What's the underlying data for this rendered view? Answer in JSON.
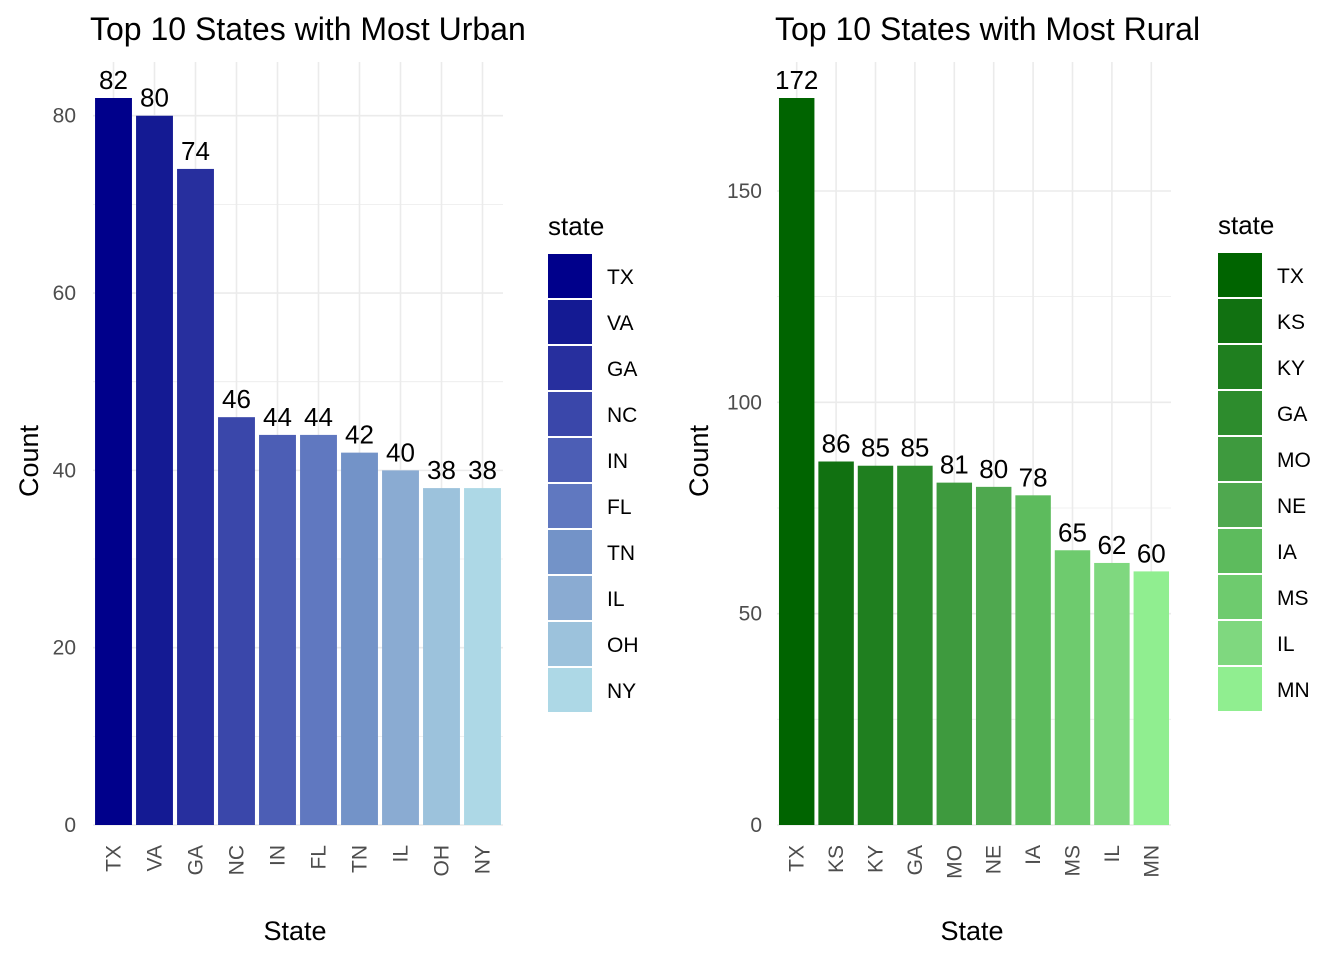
{
  "chart_data": [
    {
      "type": "bar",
      "title": "Top 10 States with Most Urban",
      "xlabel": "State",
      "ylabel": "Count",
      "categories": [
        "TX",
        "VA",
        "GA",
        "NC",
        "IN",
        "FL",
        "TN",
        "IL",
        "OH",
        "NY"
      ],
      "values": [
        82,
        80,
        74,
        46,
        44,
        44,
        42,
        40,
        38,
        38
      ],
      "colors": [
        "#00008b",
        "#141a93",
        "#272f9e",
        "#3a47aa",
        "#4c5eb5",
        "#6078c0",
        "#7393c8",
        "#8aabd2",
        "#9cc2dc",
        "#add8e6"
      ],
      "ylim": [
        0,
        82
      ],
      "yticks": [
        0,
        20,
        40,
        60,
        80
      ],
      "grid": true,
      "legend": {
        "title": "state",
        "position": "right"
      }
    },
    {
      "type": "bar",
      "title": "Top 10 States with Most Rural",
      "xlabel": "State",
      "ylabel": "Count",
      "categories": [
        "TX",
        "KS",
        "KY",
        "GA",
        "MO",
        "NE",
        "IA",
        "MS",
        "IL",
        "MN"
      ],
      "values": [
        172,
        86,
        85,
        85,
        81,
        80,
        78,
        65,
        62,
        60
      ],
      "colors": [
        "#006400",
        "#117111",
        "#1f7f1f",
        "#2d8c2d",
        "#3e9a3e",
        "#4fa84f",
        "#5dbb5d",
        "#6ecb6e",
        "#7fd87f",
        "#90ee90"
      ],
      "ylim": [
        0,
        172
      ],
      "yticks": [
        0,
        50,
        100,
        150
      ],
      "grid": true,
      "legend": {
        "title": "state",
        "position": "right"
      }
    }
  ]
}
